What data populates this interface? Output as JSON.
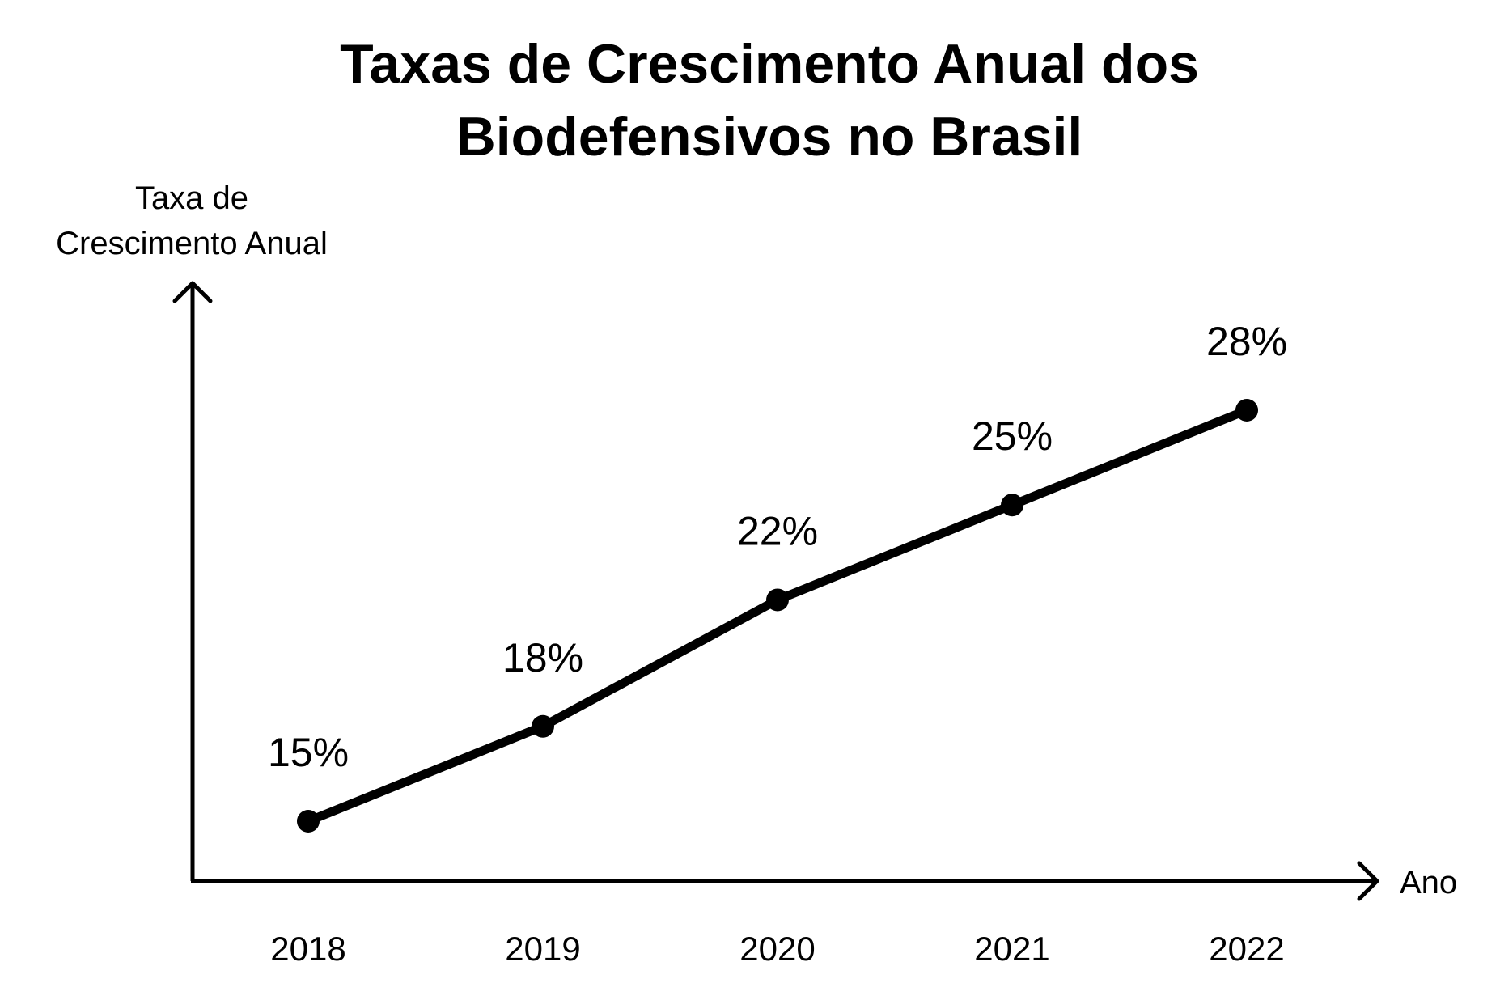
{
  "chart_data": {
    "type": "line",
    "title_lines": [
      "Taxas de Crescimento Anual dos",
      "Biodefensivos no Brasil"
    ],
    "xlabel": "Ano",
    "ylabel_lines": [
      "Taxa de",
      "Crescimento Anual"
    ],
    "categories": [
      "2018",
      "2019",
      "2020",
      "2021",
      "2022"
    ],
    "values": [
      15,
      18,
      22,
      25,
      28
    ],
    "data_labels": [
      "15%",
      "18%",
      "22%",
      "25%",
      "28%"
    ],
    "unit": "%",
    "grid": false,
    "legend": "none",
    "color": "#000000"
  }
}
